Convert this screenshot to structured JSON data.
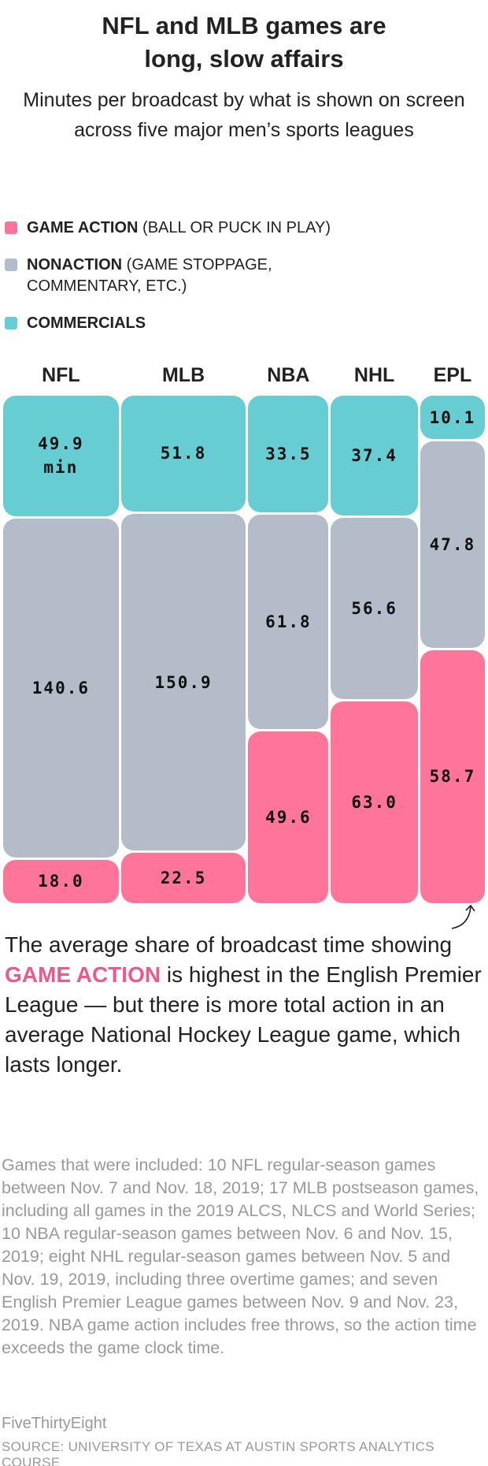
{
  "title": [
    "NFL and MLB games are",
    "long, slow affairs"
  ],
  "subtitle": "Minutes per broadcast by what is shown on screen across five major men’s sports leagues",
  "legend": [
    {
      "label": "GAME ACTION",
      "note": " (BALL OR PUCK IN PLAY)",
      "color": "#ff7599"
    },
    {
      "label": "NONACTION",
      "note": " (GAME STOPPAGE, COMMENTARY, ETC.)",
      "color": "#b3bcc8"
    },
    {
      "label": "COMMERCIALS",
      "note": "",
      "color": "#66cdd3"
    }
  ],
  "chart_data": {
    "type": "mosaic",
    "unit": "min",
    "categories": [
      "NFL",
      "MLB",
      "NBA",
      "NHL",
      "EPL"
    ],
    "series": [
      {
        "name": "COMMERCIALS",
        "color": "#66cdd3",
        "values": [
          49.9,
          51.8,
          33.5,
          37.4,
          10.1
        ]
      },
      {
        "name": "NONACTION",
        "color": "#b3bcc8",
        "values": [
          140.6,
          150.9,
          61.8,
          56.6,
          47.8
        ]
      },
      {
        "name": "GAME ACTION",
        "color": "#ff7599",
        "values": [
          18.0,
          22.5,
          49.6,
          63.0,
          58.7
        ]
      }
    ],
    "labels": [
      [
        "49.9\nmin",
        "51.8",
        "33.5",
        "37.4",
        "10.1"
      ],
      [
        "140.6",
        "150.9",
        "61.8",
        "56.6",
        "47.8"
      ],
      [
        "18.0",
        "22.5",
        "49.6",
        "63.0",
        "58.7"
      ]
    ]
  },
  "annotation": {
    "before": "The average share of broadcast time showing ",
    "highlight": "GAME ACTION",
    "after": " is highest in the English Premier League — but there is more total action in an average National Hockey League game, which lasts longer."
  },
  "notes": "Games that were included: 10 NFL regular-season games between Nov. 7 and Nov. 18, 2019; 17 MLB postseason games, including all games in the 2019 ALCS, NLCS and World Series; 10 NBA regular-season games between Nov. 6 and Nov. 15, 2019; eight NHL regular-season games between Nov. 5 and Nov. 19, 2019, including three overtime games; and seven English Premier League games between Nov. 9 and Nov. 23, 2019. NBA game action includes free throws, so the action time exceeds the game clock time.",
  "brand": "FiveThirtyEight",
  "source": "SOURCE: UNIVERSITY OF TEXAS AT AUSTIN SPORTS ANALYTICS COURSE"
}
